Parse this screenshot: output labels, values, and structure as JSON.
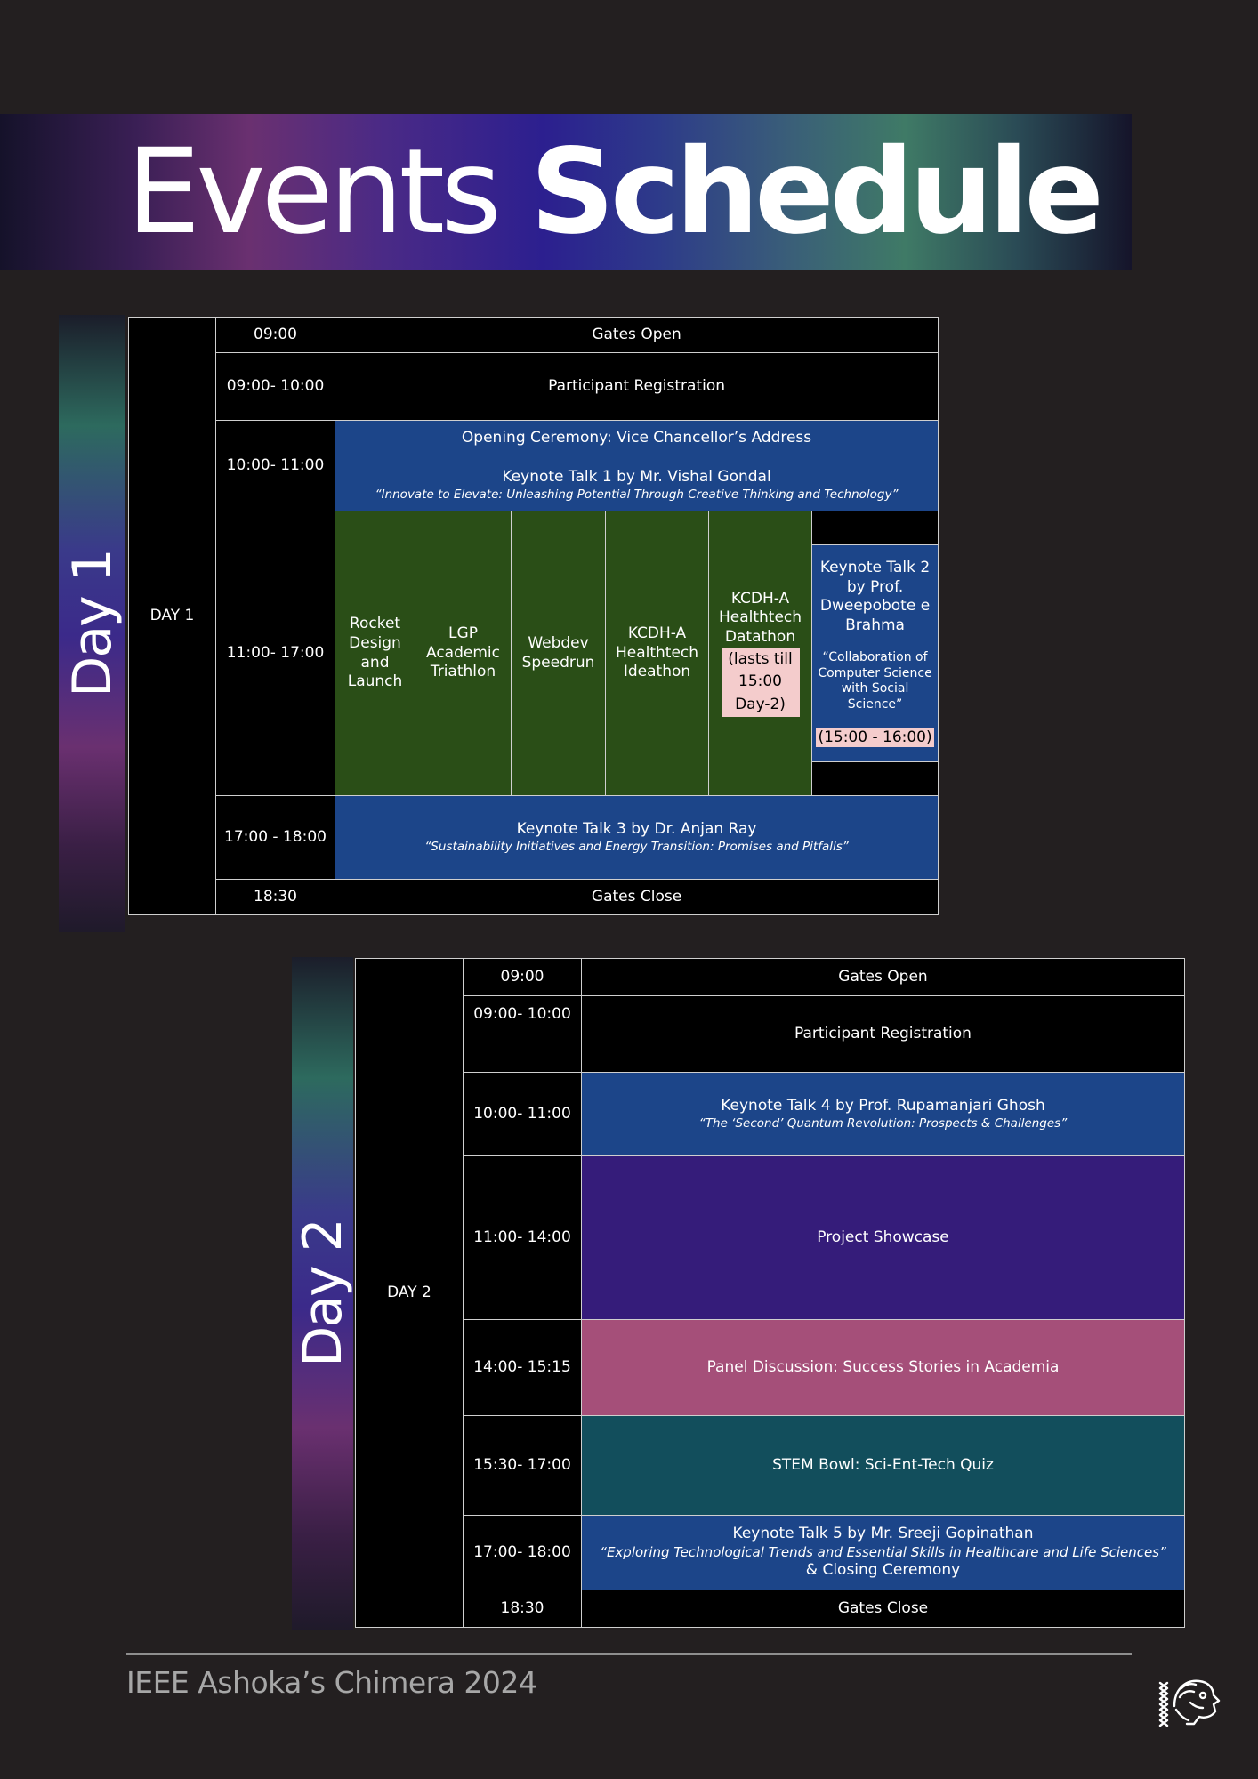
{
  "banner": {
    "title_light": "Events",
    "title_bold": "Schedule"
  },
  "day1": {
    "strip_label": "Day 1",
    "day_label": "DAY 1",
    "rows": {
      "r1_time": "09:00",
      "r1_event": "Gates Open",
      "r2_time": "09:00- 10:00",
      "r2_event": "Participant Registration",
      "r3_time": "10:00- 11:00",
      "r3_line1": "Opening Ceremony: Vice Chancellor’s Address",
      "r3_line2": "Keynote Talk 1 by Mr. Vishal Gondal",
      "r3_quote": "“Innovate to Elevate: Unleashing  Potential Through Creative Thinking and Technology”",
      "r4_time": "11:00- 17:00",
      "ev_rocket": "Rocket Design and Launch",
      "ev_lgp": "LGP Academic Triathlon",
      "ev_webdev": "Webdev Speedrun",
      "ev_ideathon": "KCDH-A Healthtech Ideathon",
      "ev_datathon": "KCDH-A Healthtech Datathon",
      "ev_datathon_note": "(lasts till 15:00 Day-2)",
      "kt2_title": "Keynote Talk 2 by Prof. Dweepobote e Brahma",
      "kt2_quote": "“Collaboration of Computer Science with Social Science”",
      "kt2_time": "(15:00 - 16:00)",
      "r5_time": "17:00 - 18:00",
      "r5_line1": "Keynote Talk 3 by Dr. Anjan Ray",
      "r5_quote": "“Sustainability Initiatives and Energy Transition: Promises and Pitfalls”",
      "r6_time": "18:30",
      "r6_event": "Gates Close"
    }
  },
  "day2": {
    "strip_label": "Day 2",
    "day_label": "DAY 2",
    "rows": {
      "r1_time": "09:00",
      "r1_event": "Gates Open",
      "r2_time": "09:00- 10:00",
      "r2_event": "Participant Registration",
      "r3_time": "10:00- 11:00",
      "r3_line1": "Keynote Talk 4 by Prof. Rupamanjari Ghosh",
      "r3_quote": "“The ‘Second’ Quantum Revolution: Prospects & Challenges”",
      "r4_time": "11:00- 14:00",
      "r4_event": "Project Showcase",
      "r5_time": "14:00- 15:15",
      "r5_event": "Panel Discussion: Success Stories in Academia",
      "r6_time": "15:30- 17:00",
      "r6_event": "STEM Bowl: Sci-Ent-Tech Quiz",
      "r7_time": "17:00- 18:00",
      "r7_line1": "Keynote Talk 5 by Mr. Sreeji Gopinathan",
      "r7_quote": "“Exploring Technological Trends and Essential Skills in Healthcare and Life Sciences”",
      "r7_line2": "& Closing Ceremony",
      "r8_time": "18:30",
      "r8_event": "Gates Close"
    }
  },
  "footer": {
    "text": "IEEE Ashoka’s Chimera 2024",
    "logo_icon": "chimera-lion-logo-icon"
  },
  "colors": {
    "background": "#231f20",
    "keynote_blue": "#1c4589",
    "event_green": "#2a4e17",
    "showcase_purple": "#351c7a",
    "panel_pink": "#a54f79",
    "quiz_teal": "#124e5c",
    "highlight": "#f4cccc"
  }
}
